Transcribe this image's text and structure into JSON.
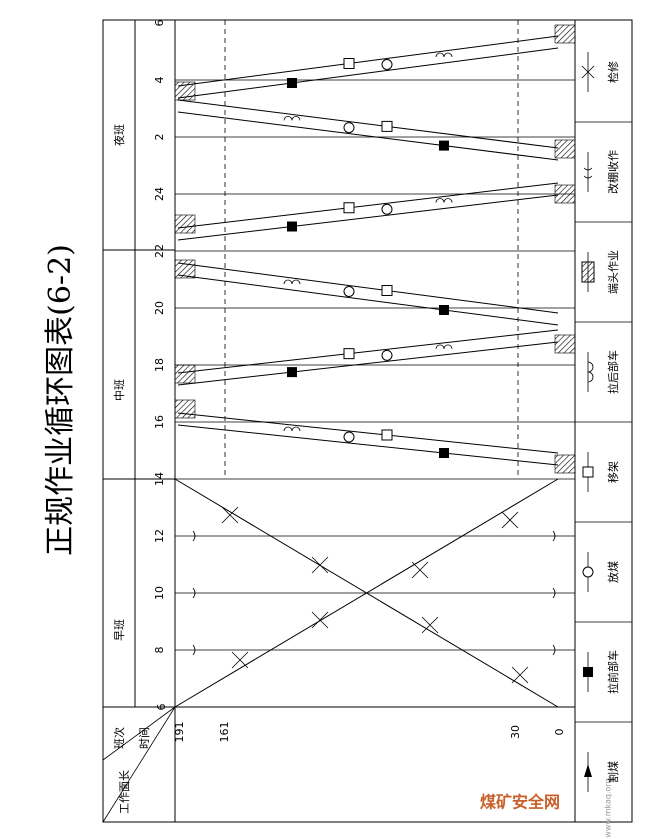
{
  "title": "正规作业循环图表(6-2)",
  "header": {
    "shift": "班次",
    "time": "时间",
    "face_length": "工作面长"
  },
  "shifts": [
    "早班",
    "中班",
    "夜班"
  ],
  "time_ticks": [
    "6",
    "8",
    "10",
    "12",
    "14",
    "16",
    "18",
    "20",
    "22",
    "24",
    "2",
    "4",
    "6"
  ],
  "face_ticks": [
    "191",
    "161",
    "30",
    "0"
  ],
  "legend": [
    "割煤",
    "拉前部车",
    "放煤",
    "移架",
    "拉后部车",
    "端头作业",
    "改棚收作",
    "检修"
  ],
  "watermark": {
    "name": "煤矿安全网",
    "url": "www.mkaq.org"
  }
}
